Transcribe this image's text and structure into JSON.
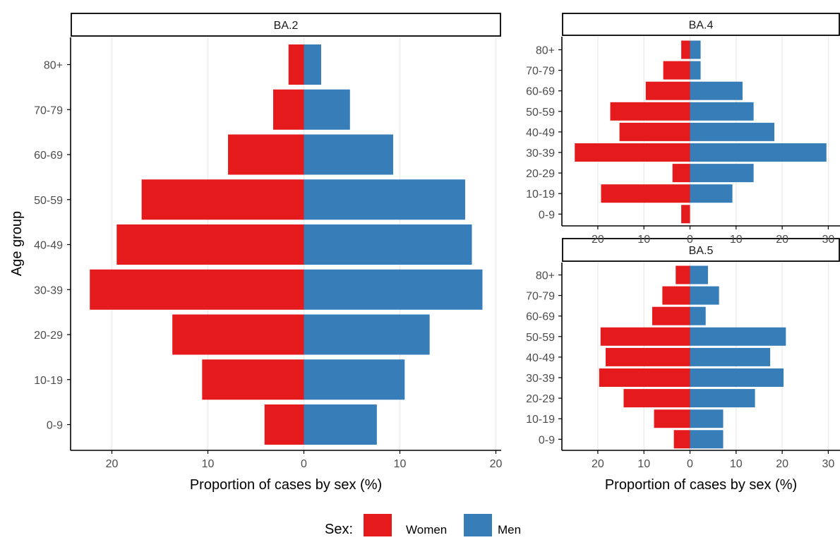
{
  "chart_data": [
    {
      "type": "bar",
      "orientation": "horizontal-population-pyramid",
      "panel": "BA.2",
      "categories": [
        "0-9",
        "10-19",
        "20-29",
        "30-39",
        "40-49",
        "50-59",
        "60-69",
        "70-79",
        "80+"
      ],
      "series": [
        {
          "name": "Women",
          "values": [
            4.1,
            10.6,
            13.7,
            22.3,
            19.5,
            16.9,
            7.9,
            3.2,
            1.6
          ]
        },
        {
          "name": "Men",
          "values": [
            7.6,
            10.5,
            13.1,
            18.6,
            17.5,
            16.8,
            9.3,
            4.8,
            1.8
          ]
        }
      ],
      "xlim": [
        -24,
        20
      ],
      "xticks": [
        -20,
        -10,
        0,
        10,
        20
      ],
      "xtick_labels": [
        "20",
        "10",
        "0",
        "10",
        "20"
      ],
      "xlabel": "Proportion of cases by sex (%)",
      "ylabel": "Age group"
    },
    {
      "type": "bar",
      "orientation": "horizontal-population-pyramid",
      "panel": "BA.4",
      "categories": [
        "0-9",
        "10-19",
        "20-29",
        "30-39",
        "40-49",
        "50-59",
        "60-69",
        "70-79",
        "80+"
      ],
      "series": [
        {
          "name": "Women",
          "values": [
            1.9,
            19.3,
            3.8,
            25.0,
            15.3,
            17.3,
            9.6,
            5.8,
            1.9
          ]
        },
        {
          "name": "Men",
          "values": [
            0,
            9.2,
            13.8,
            29.6,
            18.3,
            13.8,
            11.4,
            2.3,
            2.3
          ]
        }
      ],
      "xlim": [
        -27,
        30.5
      ],
      "xticks": [
        -20,
        -10,
        0,
        10,
        20,
        30
      ],
      "xtick_labels": [
        "20",
        "10",
        "0",
        "10",
        "20",
        "30"
      ],
      "xlabel": "",
      "ylabel": ""
    },
    {
      "type": "bar",
      "orientation": "horizontal-population-pyramid",
      "panel": "BA.5",
      "categories": [
        "0-9",
        "10-19",
        "20-29",
        "30-39",
        "40-49",
        "50-59",
        "60-69",
        "70-79",
        "80+"
      ],
      "series": [
        {
          "name": "Women",
          "values": [
            3.5,
            7.8,
            14.4,
            19.7,
            18.3,
            19.4,
            8.2,
            6.0,
            3.1
          ]
        },
        {
          "name": "Men",
          "values": [
            7.2,
            7.2,
            14.1,
            20.3,
            17.4,
            20.8,
            3.4,
            6.3,
            3.9
          ]
        }
      ],
      "xlim": [
        -27,
        30.5
      ],
      "xticks": [
        -20,
        -10,
        0,
        10,
        20,
        30
      ],
      "xtick_labels": [
        "20",
        "10",
        "0",
        "10",
        "20",
        "30"
      ],
      "xlabel": "Proportion of cases by sex (%)",
      "ylabel": ""
    }
  ],
  "legend": {
    "title": "Sex:",
    "position": "bottom",
    "items": [
      {
        "label": "Women",
        "color": "#E41A1C"
      },
      {
        "label": "Men",
        "color": "#377EB8"
      }
    ]
  },
  "colors": {
    "women": "#E41A1C",
    "men": "#377EB8",
    "grid": "#EBEBEB",
    "axis": "#000000"
  },
  "grid": true
}
